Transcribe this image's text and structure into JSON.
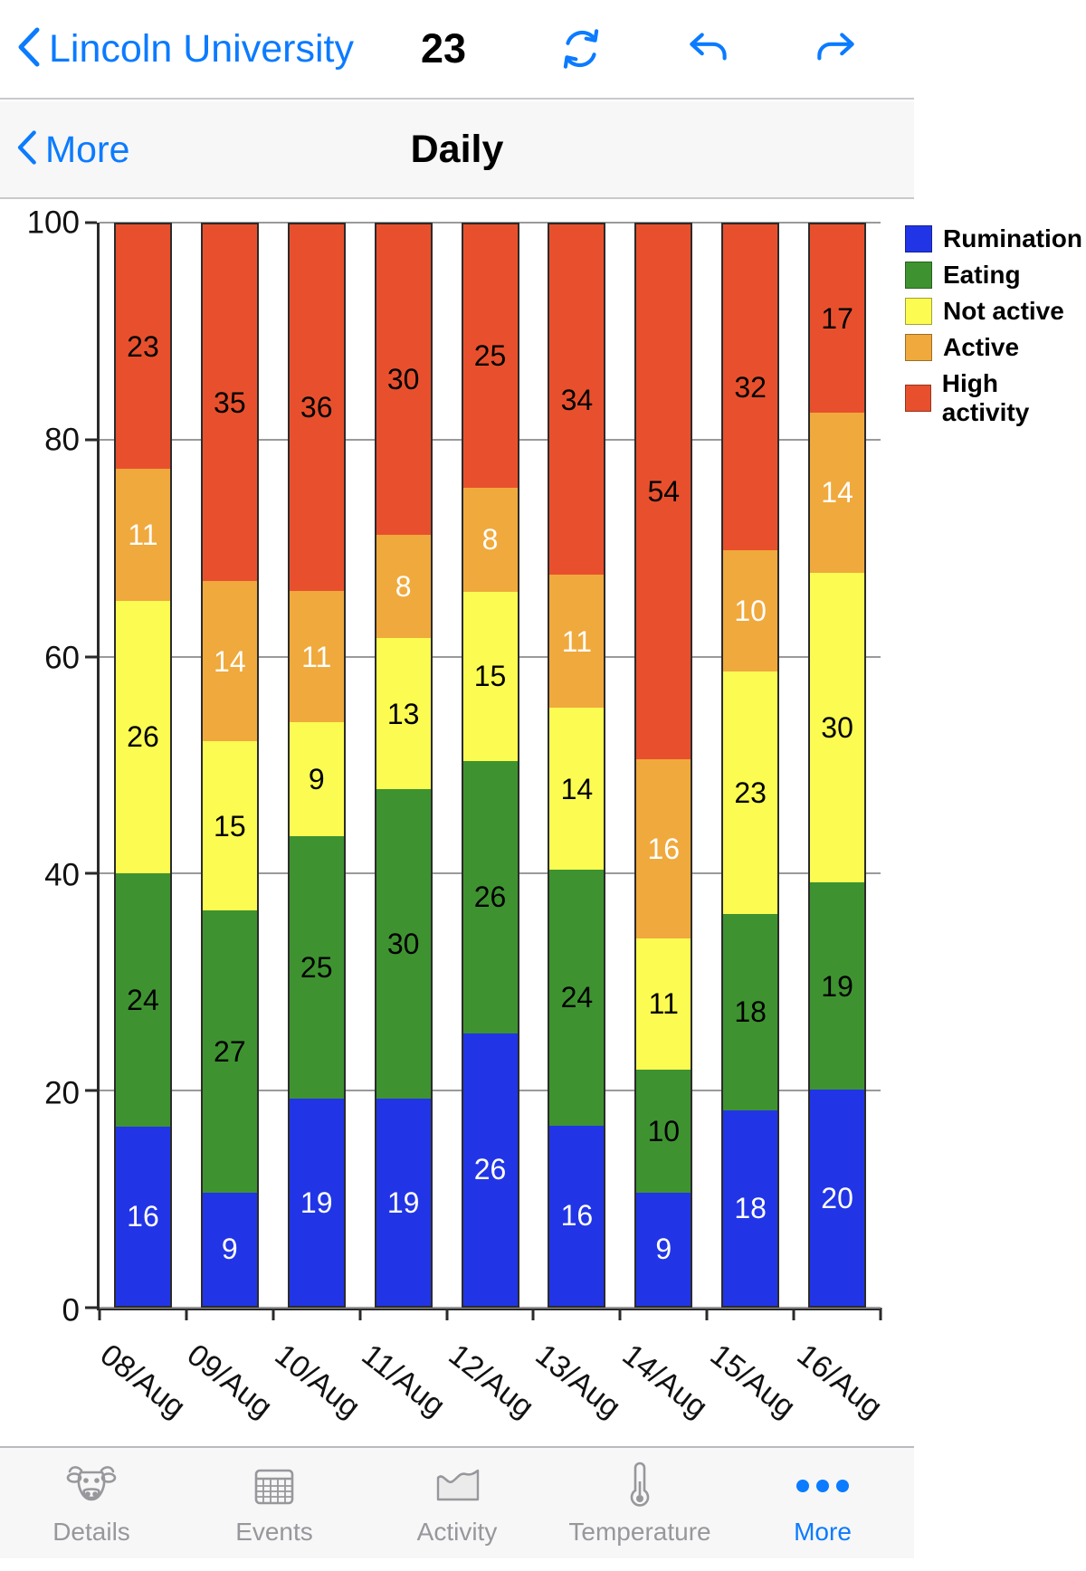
{
  "top_nav": {
    "back_label": "Lincoln University",
    "animal_id": "23",
    "icons": {
      "refresh": "sync-circular-arrows",
      "undo": "curved-arrow-left",
      "redo": "curved-arrow-right"
    }
  },
  "sub_nav": {
    "back_label": "More",
    "title": "Daily"
  },
  "chart_data": {
    "type": "bar",
    "stacked": true,
    "title": "Daily",
    "categories": [
      "08/Aug",
      "09/Aug",
      "10/Aug",
      "11/Aug",
      "12/Aug",
      "13/Aug",
      "14/Aug",
      "15/Aug",
      "16/Aug"
    ],
    "series": [
      {
        "name": "Rumination",
        "color": "#2135e6",
        "label_color": "#ffffff",
        "values": [
          16,
          9,
          19,
          19,
          26,
          16,
          9,
          18,
          20
        ]
      },
      {
        "name": "Eating",
        "color": "#3e9330",
        "label_color": "#000000",
        "values": [
          24,
          27,
          25,
          30,
          26,
          24,
          10,
          18,
          19
        ]
      },
      {
        "name": "Not active",
        "color": "#fbfb52",
        "label_color": "#000000",
        "values": [
          26,
          15,
          9,
          13,
          15,
          14,
          11,
          23,
          30
        ]
      },
      {
        "name": "Active",
        "color": "#f0a93c",
        "label_color": "#ffffff",
        "values": [
          11,
          14,
          11,
          8,
          8,
          11,
          16,
          10,
          14
        ]
      },
      {
        "name": "High activity",
        "color": "#e8502d",
        "label_color": "#000000",
        "values": [
          23,
          35,
          36,
          30,
          25,
          34,
          54,
          32,
          17
        ]
      }
    ],
    "xlabel": "",
    "ylabel": "",
    "ylim": [
      0,
      100
    ],
    "yticks": [
      0,
      20,
      40,
      60,
      80,
      100
    ],
    "grid": true,
    "legend_position": "top-right"
  },
  "tab_bar": {
    "items": [
      {
        "label": "Details",
        "icon": "cow-icon",
        "active": false
      },
      {
        "label": "Events",
        "icon": "calendar-icon",
        "active": false
      },
      {
        "label": "Activity",
        "icon": "activity-chart-icon",
        "active": false
      },
      {
        "label": "Temperature",
        "icon": "thermometer-icon",
        "active": false
      },
      {
        "label": "More",
        "icon": "ellipsis-icon",
        "active": true
      }
    ]
  },
  "colors": {
    "accent": "#0b7bff",
    "inactive_gray": "#97979c",
    "bar_bg": "#f7f7f8"
  }
}
